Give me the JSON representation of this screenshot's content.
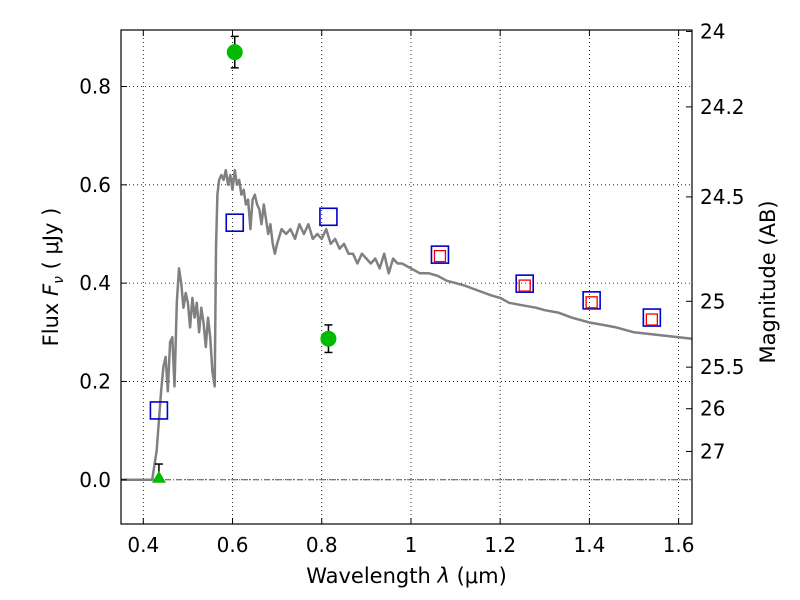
{
  "chart_data": {
    "type": "scatter",
    "xlabel": "Wavelength  λ (μm)",
    "ylabel": "Flux  Fν  ( μJy )",
    "ylabel_parts": {
      "prefix": "Flux  ",
      "var": "F",
      "sub": "ν",
      "suffix": "  ( μJy )"
    },
    "xlabel_parts": {
      "prefix": "Wavelength  ",
      "var": "λ",
      "suffix": " (μm)"
    },
    "y2label": "Magnitude (AB)",
    "xlim": [
      0.35,
      1.63
    ],
    "ylim": [
      -0.09,
      0.915
    ],
    "grid": true,
    "x_ticks": [
      {
        "value": 0.4,
        "label": "0.4"
      },
      {
        "value": 0.6,
        "label": "0.6"
      },
      {
        "value": 0.8,
        "label": "0.8"
      },
      {
        "value": 1.0,
        "label": "1"
      },
      {
        "value": 1.2,
        "label": "1.2"
      },
      {
        "value": 1.4,
        "label": "1.4"
      },
      {
        "value": 1.6,
        "label": "1.6"
      }
    ],
    "y_ticks": [
      {
        "value": 0.0,
        "label": "0.0"
      },
      {
        "value": 0.2,
        "label": "0.2"
      },
      {
        "value": 0.4,
        "label": "0.4"
      },
      {
        "value": 0.6,
        "label": "0.6"
      },
      {
        "value": 0.8,
        "label": "0.8"
      }
    ],
    "y2_ticks": [
      {
        "value": 24.0,
        "label": "24"
      },
      {
        "value": 24.2,
        "label": "24.2"
      },
      {
        "value": 24.5,
        "label": "24.5"
      },
      {
        "value": 25.0,
        "label": "25"
      },
      {
        "value": 25.5,
        "label": "25.5"
      },
      {
        "value": 26.0,
        "label": "26"
      },
      {
        "value": 27.0,
        "label": "27"
      }
    ],
    "zero_line": 0.0,
    "colors": {
      "model": "#808080",
      "observed": "#00bb00",
      "model_phot": "#0000cc",
      "secondary_phot": "#ee0000",
      "frame": "#000000"
    },
    "series": [
      {
        "kind": "line",
        "x": [
          0.35,
          0.42,
          0.43,
          0.44,
          0.445,
          0.45,
          0.455,
          0.46,
          0.465,
          0.47,
          0.475,
          0.48,
          0.485,
          0.49,
          0.495,
          0.5,
          0.505,
          0.51,
          0.515,
          0.52,
          0.525,
          0.53,
          0.535,
          0.54,
          0.545,
          0.55,
          0.555,
          0.56,
          0.563,
          0.566,
          0.57,
          0.575,
          0.58,
          0.585,
          0.59,
          0.595,
          0.6,
          0.605,
          0.61,
          0.615,
          0.62,
          0.625,
          0.63,
          0.635,
          0.64,
          0.645,
          0.65,
          0.655,
          0.66,
          0.665,
          0.67,
          0.675,
          0.68,
          0.685,
          0.69,
          0.695,
          0.7,
          0.71,
          0.72,
          0.73,
          0.74,
          0.75,
          0.76,
          0.77,
          0.78,
          0.79,
          0.8,
          0.81,
          0.82,
          0.83,
          0.84,
          0.85,
          0.86,
          0.87,
          0.88,
          0.89,
          0.9,
          0.91,
          0.92,
          0.93,
          0.94,
          0.95,
          0.96,
          0.97,
          0.98,
          1.0,
          1.02,
          1.04,
          1.06,
          1.08,
          1.1,
          1.12,
          1.15,
          1.18,
          1.2,
          1.22,
          1.25,
          1.28,
          1.3,
          1.33,
          1.36,
          1.4,
          1.43,
          1.46,
          1.5,
          1.55,
          1.6,
          1.63
        ],
        "y": [
          0.0,
          0.0,
          0.06,
          0.18,
          0.23,
          0.25,
          0.18,
          0.28,
          0.29,
          0.19,
          0.36,
          0.43,
          0.4,
          0.35,
          0.38,
          0.36,
          0.31,
          0.37,
          0.33,
          0.36,
          0.3,
          0.35,
          0.32,
          0.27,
          0.33,
          0.29,
          0.22,
          0.19,
          0.47,
          0.58,
          0.61,
          0.62,
          0.61,
          0.63,
          0.6,
          0.62,
          0.59,
          0.63,
          0.6,
          0.61,
          0.58,
          0.59,
          0.56,
          0.57,
          0.51,
          0.57,
          0.58,
          0.56,
          0.55,
          0.52,
          0.56,
          0.53,
          0.5,
          0.52,
          0.48,
          0.46,
          0.48,
          0.51,
          0.5,
          0.51,
          0.49,
          0.52,
          0.5,
          0.52,
          0.49,
          0.5,
          0.49,
          0.51,
          0.48,
          0.49,
          0.47,
          0.48,
          0.46,
          0.46,
          0.44,
          0.46,
          0.45,
          0.44,
          0.45,
          0.43,
          0.46,
          0.42,
          0.45,
          0.44,
          0.44,
          0.43,
          0.42,
          0.42,
          0.415,
          0.405,
          0.4,
          0.395,
          0.385,
          0.375,
          0.37,
          0.36,
          0.355,
          0.35,
          0.345,
          0.34,
          0.33,
          0.32,
          0.315,
          0.31,
          0.3,
          0.295,
          0.29,
          0.287
        ]
      },
      {
        "kind": "points_circle",
        "points": [
          {
            "x": 0.605,
            "y": 0.87,
            "err": 0.032
          },
          {
            "x": 0.815,
            "y": 0.287,
            "err": 0.028
          }
        ]
      },
      {
        "kind": "points_triangle",
        "points": [
          {
            "x": 0.435,
            "y": 0.0,
            "err_up": 0.032
          }
        ]
      },
      {
        "kind": "squares_blue",
        "points": [
          {
            "x": 0.435,
            "y": 0.141
          },
          {
            "x": 0.605,
            "y": 0.523
          },
          {
            "x": 0.815,
            "y": 0.535
          },
          {
            "x": 1.065,
            "y": 0.458
          },
          {
            "x": 1.255,
            "y": 0.399
          },
          {
            "x": 1.405,
            "y": 0.365
          },
          {
            "x": 1.54,
            "y": 0.33
          }
        ]
      },
      {
        "kind": "squares_red",
        "points": [
          {
            "x": 1.065,
            "y": 0.455
          },
          {
            "x": 1.255,
            "y": 0.395
          },
          {
            "x": 1.405,
            "y": 0.361
          },
          {
            "x": 1.54,
            "y": 0.326
          }
        ]
      }
    ]
  }
}
